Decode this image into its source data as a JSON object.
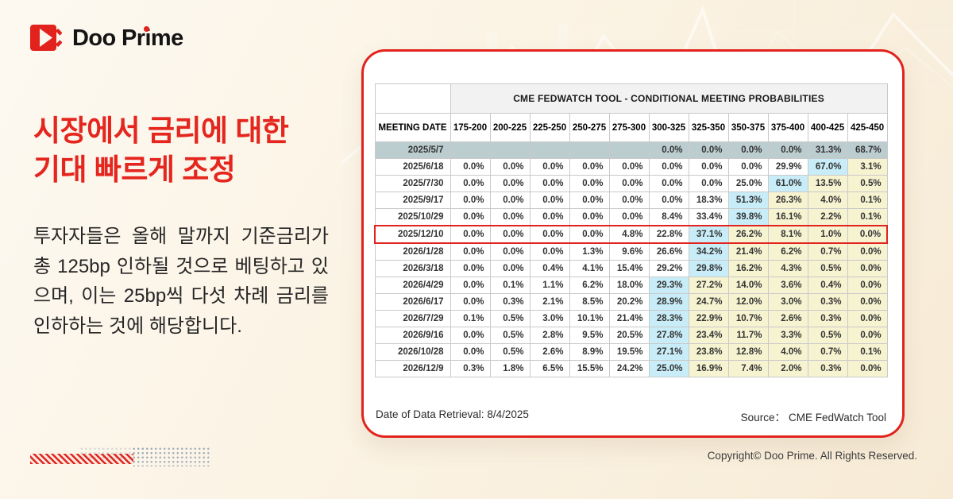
{
  "logo": {
    "text": "Doo Prime"
  },
  "headline": {
    "line1": "시장에서 금리에 대한",
    "line2": "기대 빠르게 조정"
  },
  "body": "투자자들은 올해 말까지 기준금리가 총 125bp 인하될 것으로 베팅하고 있으며, 이는 25bp씩 다섯 차례 금리를 인하하는 것에 해당합니다.",
  "card": {
    "retrieval": "Date of Data Retrieval: 8/4/2025",
    "source_label": "Source：",
    "source_value": "CME FedWatch Tool"
  },
  "footer": {
    "copyright": "Copyright© Doo Prime. All Rights Reserved."
  },
  "colors": {
    "brand_red": "#e2231d",
    "selected_row": "#bccdd0",
    "highlight_blue": "#c8edf8",
    "highlight_yellow": "#f6f3d1"
  },
  "chart_data": {
    "type": "table",
    "title": "CME FEDWATCH TOOL - CONDITIONAL MEETING PROBABILITIES",
    "row_header": "MEETING DATE",
    "columns": [
      "175-200",
      "200-225",
      "225-250",
      "250-275",
      "275-300",
      "300-325",
      "325-350",
      "350-375",
      "375-400",
      "400-425",
      "425-450"
    ],
    "rows": [
      {
        "date": "2025/5/7",
        "values": [
          "",
          "",
          "",
          "",
          "",
          "0.0%",
          "0.0%",
          "0.0%",
          "0.0%",
          "31.3%",
          "68.7%"
        ],
        "blue": null,
        "selected": true,
        "boxed": false
      },
      {
        "date": "2025/6/18",
        "values": [
          "0.0%",
          "0.0%",
          "0.0%",
          "0.0%",
          "0.0%",
          "0.0%",
          "0.0%",
          "0.0%",
          "29.9%",
          "67.0%",
          "3.1%"
        ],
        "blue": 9,
        "selected": false,
        "boxed": false
      },
      {
        "date": "2025/7/30",
        "values": [
          "0.0%",
          "0.0%",
          "0.0%",
          "0.0%",
          "0.0%",
          "0.0%",
          "0.0%",
          "25.0%",
          "61.0%",
          "13.5%",
          "0.5%"
        ],
        "blue": 8,
        "selected": false,
        "boxed": false
      },
      {
        "date": "2025/9/17",
        "values": [
          "0.0%",
          "0.0%",
          "0.0%",
          "0.0%",
          "0.0%",
          "0.0%",
          "18.3%",
          "51.3%",
          "26.3%",
          "4.0%",
          "0.1%"
        ],
        "blue": 7,
        "selected": false,
        "boxed": false
      },
      {
        "date": "2025/10/29",
        "values": [
          "0.0%",
          "0.0%",
          "0.0%",
          "0.0%",
          "0.0%",
          "8.4%",
          "33.4%",
          "39.8%",
          "16.1%",
          "2.2%",
          "0.1%"
        ],
        "blue": 7,
        "selected": false,
        "boxed": false
      },
      {
        "date": "2025/12/10",
        "values": [
          "0.0%",
          "0.0%",
          "0.0%",
          "0.0%",
          "4.8%",
          "22.8%",
          "37.1%",
          "26.2%",
          "8.1%",
          "1.0%",
          "0.0%"
        ],
        "blue": 6,
        "selected": false,
        "boxed": true
      },
      {
        "date": "2026/1/28",
        "values": [
          "0.0%",
          "0.0%",
          "0.0%",
          "1.3%",
          "9.6%",
          "26.6%",
          "34.2%",
          "21.4%",
          "6.2%",
          "0.7%",
          "0.0%"
        ],
        "blue": 6,
        "selected": false,
        "boxed": false
      },
      {
        "date": "2026/3/18",
        "values": [
          "0.0%",
          "0.0%",
          "0.4%",
          "4.1%",
          "15.4%",
          "29.2%",
          "29.8%",
          "16.2%",
          "4.3%",
          "0.5%",
          "0.0%"
        ],
        "blue": 6,
        "selected": false,
        "boxed": false
      },
      {
        "date": "2026/4/29",
        "values": [
          "0.0%",
          "0.1%",
          "1.1%",
          "6.2%",
          "18.0%",
          "29.3%",
          "27.2%",
          "14.0%",
          "3.6%",
          "0.4%",
          "0.0%"
        ],
        "blue": 5,
        "selected": false,
        "boxed": false
      },
      {
        "date": "2026/6/17",
        "values": [
          "0.0%",
          "0.3%",
          "2.1%",
          "8.5%",
          "20.2%",
          "28.9%",
          "24.7%",
          "12.0%",
          "3.0%",
          "0.3%",
          "0.0%"
        ],
        "blue": 5,
        "selected": false,
        "boxed": false
      },
      {
        "date": "2026/7/29",
        "values": [
          "0.1%",
          "0.5%",
          "3.0%",
          "10.1%",
          "21.4%",
          "28.3%",
          "22.9%",
          "10.7%",
          "2.6%",
          "0.3%",
          "0.0%"
        ],
        "blue": 5,
        "selected": false,
        "boxed": false
      },
      {
        "date": "2026/9/16",
        "values": [
          "0.0%",
          "0.5%",
          "2.8%",
          "9.5%",
          "20.5%",
          "27.8%",
          "23.4%",
          "11.7%",
          "3.3%",
          "0.5%",
          "0.0%"
        ],
        "blue": 5,
        "selected": false,
        "boxed": false
      },
      {
        "date": "2026/10/28",
        "values": [
          "0.0%",
          "0.5%",
          "2.6%",
          "8.9%",
          "19.5%",
          "27.1%",
          "23.8%",
          "12.8%",
          "4.0%",
          "0.7%",
          "0.1%"
        ],
        "blue": 5,
        "selected": false,
        "boxed": false
      },
      {
        "date": "2026/12/9",
        "values": [
          "0.3%",
          "1.8%",
          "6.5%",
          "15.5%",
          "24.2%",
          "25.0%",
          "16.9%",
          "7.4%",
          "2.0%",
          "0.3%",
          "0.0%"
        ],
        "blue": 5,
        "selected": false,
        "boxed": false
      }
    ]
  }
}
